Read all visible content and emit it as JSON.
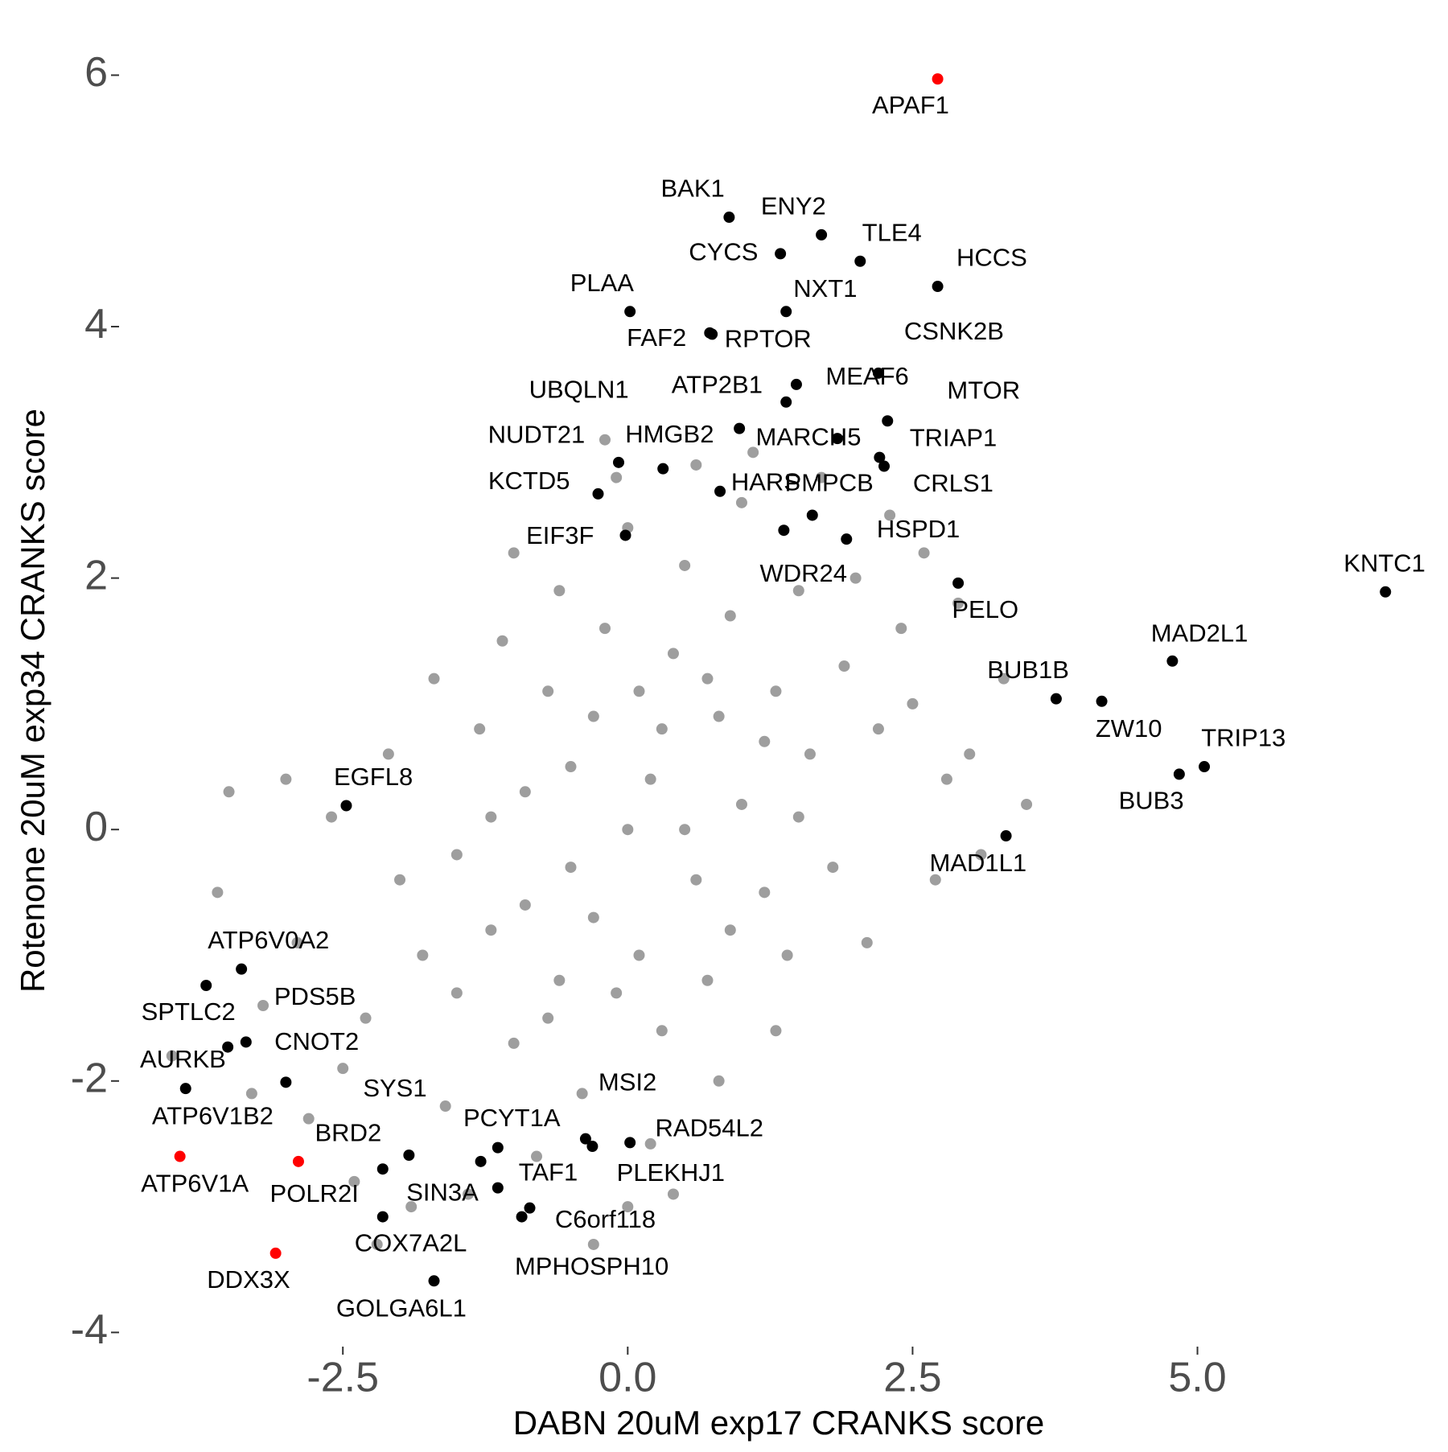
{
  "chart_data": {
    "type": "scatter",
    "x_label": "DABN 20uM exp17 CRANKS score",
    "y_label": "Rotenone 20uM exp34 CRANKS score",
    "xlim": [
      -4.45,
      7.1
    ],
    "ylim": [
      -4.1,
      6.15
    ],
    "xticks": [
      -2.5,
      {
        "value": 0,
        "label": "0.0"
      },
      2.5,
      {
        "value": 5,
        "label": "5.0"
      }
    ],
    "yticks": [
      -4,
      -2,
      0,
      2,
      4,
      6
    ],
    "grid": false,
    "series": [
      {
        "color": "#9e9e9e",
        "x": [
          -0.5,
          0.2,
          0.8,
          -1.2,
          1.3,
          0.0,
          -0.9,
          0.6,
          1.0,
          -0.3,
          0.4,
          -0.6,
          1.6,
          -1.5,
          0.9,
          -1.8,
          0.1,
          1.9,
          -0.2,
          0.5,
          -1.0,
          2.2,
          -2.0,
          0.7,
          1.2,
          -0.7,
          -1.3,
          0.3,
          1.5,
          -2.3,
          2.5,
          -2.6,
          0.0,
          1.0,
          -0.4,
          2.8,
          -1.6,
          2.0,
          -2.9,
          3.0,
          -0.8,
          1.8,
          -3.2,
          0.6,
          -1.1,
          2.4,
          -2.1,
          1.4,
          -1.7,
          0.2,
          -3.5,
          3.3,
          -2.8,
          -0.1,
          1.1,
          -2.4,
          2.6,
          0.4,
          -1.4,
          3.5,
          -3.0,
          -0.2,
          -1.9,
          2.1,
          1.7,
          -0.5,
          0.5,
          0.9,
          -0.9,
          0.3,
          -0.3,
          1.2,
          -1.2,
          0.7,
          -0.7,
          1.5,
          -1.5,
          0.1,
          -0.1,
          2.3,
          -3.6,
          2.9,
          -2.5,
          0.8,
          -1.0,
          1.3,
          -0.6,
          3.1,
          -3.3,
          2.7,
          -0.3,
          0.0,
          -2.2,
          -4.0
        ],
        "values": [
          -0.3,
          0.4,
          0.9,
          -0.8,
          1.1,
          0.0,
          0.3,
          -0.4,
          0.2,
          0.9,
          1.4,
          -1.2,
          0.6,
          -0.2,
          1.7,
          -1.0,
          -1.0,
          1.3,
          1.6,
          2.1,
          -1.7,
          0.8,
          -0.4,
          -1.2,
          -0.5,
          1.1,
          0.8,
          -1.6,
          1.9,
          -1.5,
          1.0,
          0.1,
          2.4,
          2.6,
          -2.1,
          0.4,
          -2.2,
          2.0,
          -0.9,
          0.6,
          -2.6,
          -0.3,
          -1.4,
          2.9,
          1.5,
          1.6,
          0.6,
          -1.0,
          1.2,
          -2.5,
          0.3,
          1.2,
          -2.3,
          2.8,
          3.0,
          -2.8,
          2.2,
          -2.9,
          -2.9,
          0.2,
          0.4,
          3.1,
          -3.0,
          -0.9,
          2.8,
          0.5,
          0.0,
          -0.8,
          -0.6,
          0.8,
          -0.7,
          0.7,
          0.1,
          1.2,
          -1.5,
          0.1,
          -1.3,
          1.1,
          -1.3,
          2.5,
          -0.5,
          1.8,
          -1.9,
          -2.0,
          2.2,
          -1.6,
          1.9,
          -0.2,
          -2.1,
          -0.4,
          -3.3,
          -3.0,
          -3.3,
          -1.8
        ]
      },
      {
        "color": "#000000",
        "labels": [
          "BAK1",
          "ENY2",
          "CYCS",
          "TLE4",
          "HCCS",
          "PLAA",
          "NXT1",
          "FAF2",
          "RPTOR",
          "CSNK2B",
          "MEAF6",
          "ATP2B1",
          "MTOR",
          "UBQLN1",
          "MARCH5",
          "TRIAP1",
          "NUDT21",
          "HMGB2",
          "KCTD5",
          "CRLS1",
          "HARS",
          "PMPCB",
          "EIF3F",
          "HSPD1",
          "WDR24",
          "PELO",
          "KNTC1",
          "MAD2L1",
          "BUB1B",
          "ZW10",
          "TRIP13",
          "BUB3",
          "MAD1L1",
          "EGFL8",
          "ATP6V0A2",
          "SPTLC2",
          "PDS5B",
          "AURKB",
          "CNOT2",
          "ATP6V1B2",
          "SYS1",
          "BRD2",
          "COX7A2L",
          "GOLGA6L1",
          "SIN3A",
          "PCYT1A",
          "TAF1",
          "MSI2",
          "PLEKHJ1",
          "RAD54L2",
          "C6orf118",
          "MPHOSPH10"
        ],
        "x": [
          0.89,
          1.7,
          1.34,
          2.04,
          2.72,
          0.02,
          1.39,
          0.72,
          0.74,
          2.2,
          1.48,
          1.39,
          2.28,
          0.98,
          1.84,
          2.21,
          -0.08,
          0.31,
          -0.26,
          2.25,
          0.81,
          1.62,
          -0.02,
          1.92,
          1.37,
          2.9,
          6.65,
          4.78,
          3.76,
          4.16,
          5.06,
          4.84,
          3.32,
          -2.47,
          -3.39,
          -3.7,
          -3.35,
          -3.51,
          -3.0,
          -3.88,
          -1.92,
          -2.15,
          -2.15,
          -1.7,
          -1.29,
          -1.14,
          -1.14,
          -0.37,
          -0.31,
          0.02,
          -0.86,
          -0.93
        ],
        "values": [
          4.87,
          4.73,
          4.58,
          4.52,
          4.32,
          4.12,
          4.12,
          3.95,
          3.94,
          3.63,
          3.54,
          3.4,
          3.25,
          3.19,
          3.11,
          2.96,
          2.92,
          2.87,
          2.67,
          2.89,
          2.69,
          2.5,
          2.34,
          2.31,
          2.38,
          1.96,
          1.89,
          1.34,
          1.04,
          1.02,
          0.5,
          0.44,
          -0.05,
          0.19,
          -1.11,
          -1.24,
          -1.69,
          -1.73,
          -2.01,
          -2.06,
          -2.59,
          -2.7,
          -3.08,
          -3.59,
          -2.64,
          -2.53,
          -2.85,
          -2.46,
          -2.52,
          -2.49,
          -3.01,
          -3.08
        ]
      },
      {
        "color": "#ff0000",
        "labels": [
          "APAF1",
          "ATP6V1A",
          "POLR2I",
          "DDX3X"
        ],
        "x": [
          2.72,
          -3.93,
          -2.89,
          -3.09
        ],
        "values": [
          5.97,
          -2.6,
          -2.64,
          -3.37
        ]
      }
    ]
  }
}
